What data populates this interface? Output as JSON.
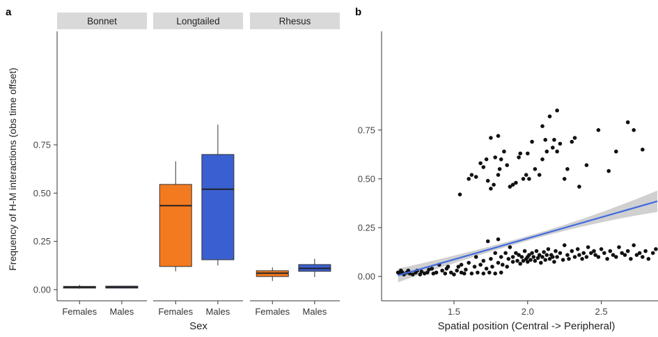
{
  "panel_a": {
    "panel_label": "a",
    "ylabel": "Frequency of H-M interactions (obs time offset)",
    "xlabel": "Sex",
    "y_ticks": [
      "0.00",
      "0.25",
      "0.50",
      "0.75"
    ],
    "facets": [
      "Bonnet",
      "Longtailed",
      "Rhesus"
    ],
    "x_categories": [
      "Females",
      "Males"
    ]
  },
  "panel_b": {
    "panel_label": "b",
    "xlabel": "Spatial position (Central -> Peripheral)",
    "x_ticks": [
      "1.5",
      "2.0",
      "2.5"
    ],
    "y_ticks": [
      "0.00",
      "0.25",
      "0.50",
      "0.75"
    ]
  },
  "colors": {
    "female_fill": "#F47A1F",
    "male_fill": "#3A5FD0",
    "strip_bg": "#D9D9D9",
    "fit_line": "#4169E1",
    "ci_band": "#C8C8C8",
    "point": "#111111"
  },
  "chart_data": [
    {
      "type": "box",
      "title": "",
      "ylabel": "Frequency of H-M interactions (obs time offset)",
      "xlabel": "Sex",
      "ylim": [
        -0.02,
        0.9
      ],
      "facets": [
        "Bonnet",
        "Longtailed",
        "Rhesus"
      ],
      "categories": [
        "Females",
        "Males"
      ],
      "groups": [
        {
          "facet": "Bonnet",
          "sex": "Females",
          "min": 0.005,
          "q1": 0.008,
          "median": 0.013,
          "q3": 0.017,
          "max": 0.025
        },
        {
          "facet": "Bonnet",
          "sex": "Males",
          "min": 0.006,
          "q1": 0.008,
          "median": 0.014,
          "q3": 0.018,
          "max": 0.02
        },
        {
          "facet": "Longtailed",
          "sex": "Females",
          "min": 0.095,
          "q1": 0.12,
          "median": 0.435,
          "q3": 0.545,
          "max": 0.665
        },
        {
          "facet": "Longtailed",
          "sex": "Males",
          "min": 0.125,
          "q1": 0.155,
          "median": 0.52,
          "q3": 0.7,
          "max": 0.855
        },
        {
          "facet": "Rhesus",
          "sex": "Females",
          "min": 0.045,
          "q1": 0.068,
          "median": 0.085,
          "q3": 0.098,
          "max": 0.115
        },
        {
          "facet": "Rhesus",
          "sex": "Males",
          "min": 0.065,
          "q1": 0.095,
          "median": 0.11,
          "q3": 0.13,
          "max": 0.16
        }
      ]
    },
    {
      "type": "scatter",
      "title": "",
      "xlabel": "Spatial position (Central -> Peripheral)",
      "ylabel": "",
      "xlim": [
        1.1,
        2.88
      ],
      "ylim": [
        -0.05,
        0.89
      ],
      "fit": {
        "type": "linear",
        "x": [
          1.12,
          2.88
        ],
        "y": [
          0.005,
          0.385
        ],
        "ci_halfwidth_ends": [
          0.035,
          0.055
        ],
        "ci_halfwidth_center": 0.012
      },
      "points": [
        [
          1.12,
          0.02
        ],
        [
          1.13,
          0.015
        ],
        [
          1.14,
          0.03
        ],
        [
          1.15,
          0.02
        ],
        [
          1.16,
          0.01
        ],
        [
          1.18,
          0.02
        ],
        [
          1.19,
          0.03
        ],
        [
          1.2,
          0.015
        ],
        [
          1.22,
          0.01
        ],
        [
          1.24,
          0.02
        ],
        [
          1.25,
          0.03
        ],
        [
          1.27,
          0.01
        ],
        [
          1.28,
          0.025
        ],
        [
          1.3,
          0.015
        ],
        [
          1.32,
          0.02
        ],
        [
          1.33,
          0.035
        ],
        [
          1.35,
          0.04
        ],
        [
          1.36,
          0.015
        ],
        [
          1.38,
          0.02
        ],
        [
          1.4,
          0.06
        ],
        [
          1.42,
          0.03
        ],
        [
          1.44,
          0.015
        ],
        [
          1.45,
          0.04
        ],
        [
          1.46,
          0.05
        ],
        [
          1.48,
          0.02
        ],
        [
          1.5,
          0.01
        ],
        [
          1.52,
          0.03
        ],
        [
          1.53,
          0.05
        ],
        [
          1.55,
          0.02
        ],
        [
          1.55,
          0.06
        ],
        [
          1.57,
          0.015
        ],
        [
          1.58,
          0.035
        ],
        [
          1.6,
          0.07
        ],
        [
          1.62,
          0.015
        ],
        [
          1.64,
          0.05
        ],
        [
          1.65,
          0.1
        ],
        [
          1.66,
          0.02
        ],
        [
          1.68,
          0.06
        ],
        [
          1.7,
          0.015
        ],
        [
          1.7,
          0.08
        ],
        [
          1.72,
          0.04
        ],
        [
          1.73,
          0.18
        ],
        [
          1.74,
          0.02
        ],
        [
          1.75,
          0.09
        ],
        [
          1.76,
          0.05
        ],
        [
          1.78,
          0.015
        ],
        [
          1.78,
          0.12
        ],
        [
          1.8,
          0.07
        ],
        [
          1.8,
          0.19
        ],
        [
          1.82,
          0.02
        ],
        [
          1.82,
          0.1
        ],
        [
          1.83,
          0.06
        ],
        [
          1.85,
          0.12
        ],
        [
          1.86,
          0.05
        ],
        [
          1.87,
          0.09
        ],
        [
          1.88,
          0.15
        ],
        [
          1.9,
          0.075
        ],
        [
          1.9,
          0.1
        ],
        [
          1.92,
          0.12
        ],
        [
          1.93,
          0.08
        ],
        [
          1.94,
          0.11
        ],
        [
          1.95,
          0.065
        ],
        [
          1.96,
          0.1
        ],
        [
          1.97,
          0.08
        ],
        [
          1.98,
          0.13
        ],
        [
          1.99,
          0.09
        ],
        [
          2.0,
          0.1
        ],
        [
          2.0,
          0.075
        ],
        [
          2.01,
          0.11
        ],
        [
          2.02,
          0.085
        ],
        [
          2.03,
          0.12
        ],
        [
          2.04,
          0.1
        ],
        [
          2.05,
          0.08
        ],
        [
          2.06,
          0.13
        ],
        [
          2.07,
          0.095
        ],
        [
          2.08,
          0.11
        ],
        [
          2.09,
          0.07
        ],
        [
          2.1,
          0.1
        ],
        [
          2.11,
          0.125
        ],
        [
          2.12,
          0.085
        ],
        [
          2.13,
          0.11
        ],
        [
          2.14,
          0.14
        ],
        [
          2.15,
          0.09
        ],
        [
          2.16,
          0.11
        ],
        [
          2.17,
          0.1
        ],
        [
          2.18,
          0.075
        ],
        [
          2.19,
          0.13
        ],
        [
          2.2,
          0.1
        ],
        [
          2.22,
          0.12
        ],
        [
          2.24,
          0.085
        ],
        [
          2.25,
          0.16
        ],
        [
          2.27,
          0.11
        ],
        [
          2.28,
          0.09
        ],
        [
          2.3,
          0.13
        ],
        [
          2.32,
          0.1
        ],
        [
          2.34,
          0.14
        ],
        [
          2.35,
          0.11
        ],
        [
          2.37,
          0.09
        ],
        [
          2.38,
          0.12
        ],
        [
          2.4,
          0.1
        ],
        [
          2.41,
          0.15
        ],
        [
          2.43,
          0.12
        ],
        [
          2.45,
          0.13
        ],
        [
          2.46,
          0.11
        ],
        [
          2.48,
          0.1
        ],
        [
          2.5,
          0.14
        ],
        [
          2.52,
          0.12
        ],
        [
          2.54,
          0.09
        ],
        [
          2.56,
          0.13
        ],
        [
          2.58,
          0.11
        ],
        [
          2.6,
          0.1
        ],
        [
          2.62,
          0.15
        ],
        [
          2.64,
          0.12
        ],
        [
          2.66,
          0.11
        ],
        [
          2.68,
          0.13
        ],
        [
          2.7,
          0.09
        ],
        [
          2.72,
          0.16
        ],
        [
          2.74,
          0.11
        ],
        [
          2.76,
          0.12
        ],
        [
          2.78,
          0.1
        ],
        [
          2.8,
          0.13
        ],
        [
          2.82,
          0.09
        ],
        [
          2.85,
          0.12
        ],
        [
          2.87,
          0.14
        ],
        [
          1.54,
          0.42
        ],
        [
          1.6,
          0.5
        ],
        [
          1.62,
          0.52
        ],
        [
          1.65,
          0.51
        ],
        [
          1.68,
          0.58
        ],
        [
          1.7,
          0.56
        ],
        [
          1.72,
          0.6
        ],
        [
          1.73,
          0.49
        ],
        [
          1.75,
          0.45
        ],
        [
          1.77,
          0.47
        ],
        [
          1.78,
          0.61
        ],
        [
          1.8,
          0.52
        ],
        [
          1.81,
          0.55
        ],
        [
          1.82,
          0.6
        ],
        [
          1.84,
          0.64
        ],
        [
          1.86,
          0.57
        ],
        [
          1.88,
          0.46
        ],
        [
          1.9,
          0.47
        ],
        [
          1.92,
          0.48
        ],
        [
          1.94,
          0.61
        ],
        [
          1.95,
          0.63
        ],
        [
          1.97,
          0.5
        ],
        [
          1.99,
          0.52
        ],
        [
          2.0,
          0.63
        ],
        [
          2.01,
          0.5
        ],
        [
          2.03,
          0.69
        ],
        [
          2.05,
          0.55
        ],
        [
          2.08,
          0.52
        ],
        [
          2.1,
          0.6
        ],
        [
          2.12,
          0.7
        ],
        [
          2.13,
          0.64
        ],
        [
          2.15,
          0.82
        ],
        [
          2.17,
          0.66
        ],
        [
          2.18,
          0.7
        ],
        [
          2.2,
          0.64
        ],
        [
          2.22,
          0.68
        ],
        [
          2.25,
          0.5
        ],
        [
          2.27,
          0.55
        ],
        [
          2.3,
          0.69
        ],
        [
          2.32,
          0.71
        ],
        [
          2.35,
          0.46
        ],
        [
          2.4,
          0.57
        ],
        [
          2.48,
          0.75
        ],
        [
          2.55,
          0.54
        ],
        [
          2.6,
          0.64
        ],
        [
          2.68,
          0.79
        ],
        [
          2.72,
          0.75
        ],
        [
          2.78,
          0.65
        ],
        [
          1.75,
          0.71
        ],
        [
          1.8,
          0.72
        ],
        [
          2.1,
          0.77
        ],
        [
          2.2,
          0.85
        ]
      ]
    }
  ]
}
